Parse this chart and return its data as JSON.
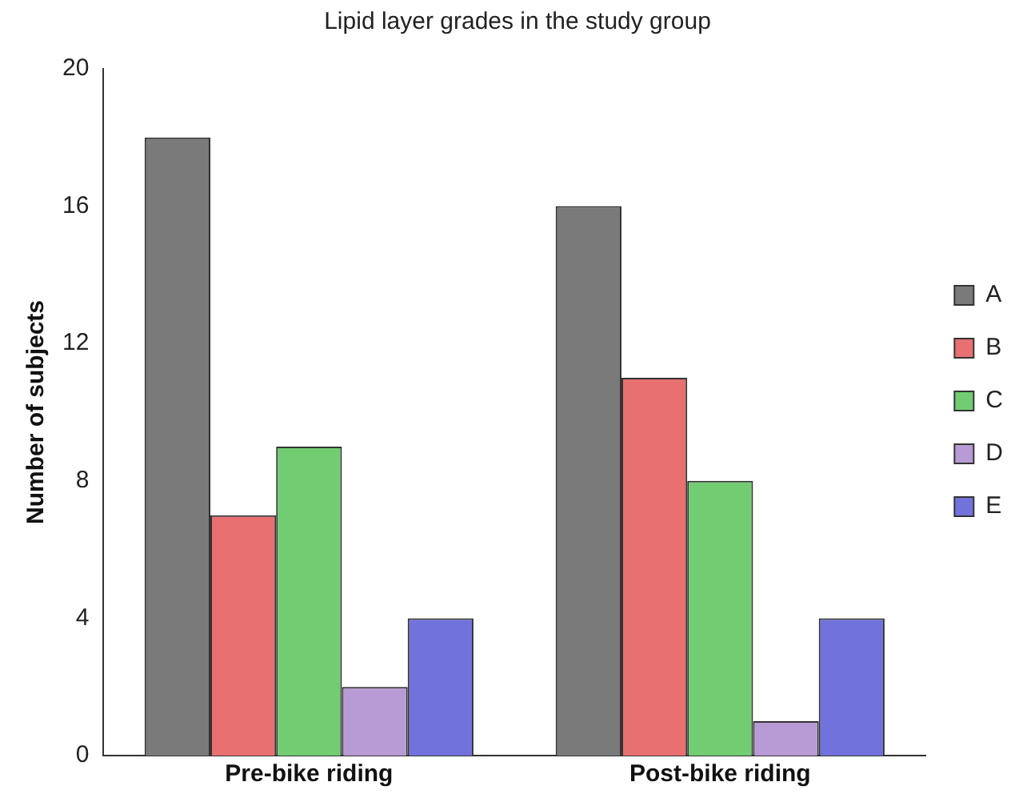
{
  "chart_data": {
    "type": "bar",
    "title": "Lipid layer grades in the study group",
    "ylabel": "Number of subjects",
    "categories": [
      "Pre-bike riding",
      "Post-bike riding"
    ],
    "series": [
      {
        "name": "A",
        "color": "#7a7a7a",
        "values": [
          18,
          16
        ]
      },
      {
        "name": "B",
        "color": "#e87070",
        "values": [
          7,
          11
        ]
      },
      {
        "name": "C",
        "color": "#72cc72",
        "values": [
          9,
          8
        ]
      },
      {
        "name": "D",
        "color": "#b89ad4",
        "values": [
          2,
          1
        ]
      },
      {
        "name": "E",
        "color": "#7272dc",
        "values": [
          4,
          4
        ]
      }
    ],
    "ylim": [
      0,
      20
    ],
    "yticks": [
      0,
      4,
      8,
      12,
      16,
      20
    ],
    "grid": false,
    "legend": "right"
  }
}
